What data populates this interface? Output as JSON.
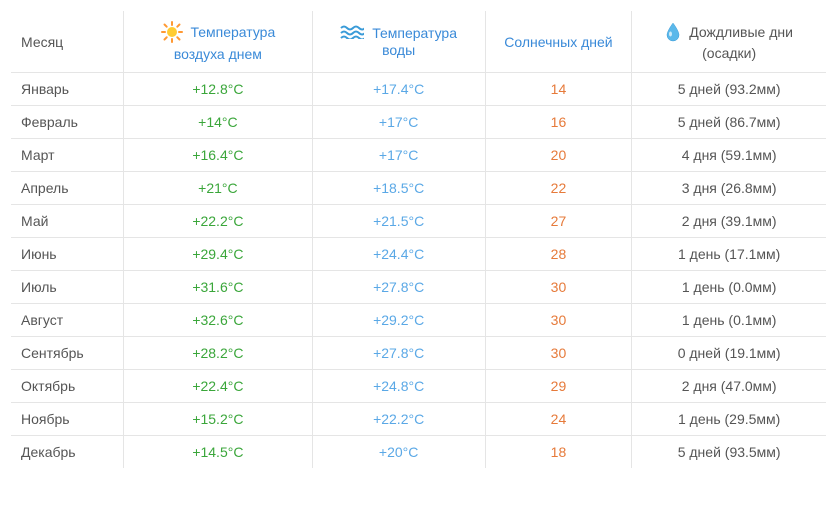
{
  "colors": {
    "air": "#3aa63a",
    "water": "#5aa8e6",
    "sunny": "#e67a3a",
    "rain": "#555555",
    "header_link": "#3a8ad8",
    "header_text": "#555555",
    "border": "#e5e5e5",
    "background": "#ffffff"
  },
  "headers": {
    "month": "Месяц",
    "air": "Температура воздуха днем",
    "water": "Температура воды",
    "sunny": "Солнечных дней",
    "rain": "Дождливые дни (осадки)"
  },
  "icons": {
    "sun": "sun-icon",
    "waves": "waves-icon",
    "drop": "drop-icon"
  },
  "rows": [
    {
      "month": "Январь",
      "air": "+12.8°C",
      "water": "+17.4°C",
      "sunny": "14",
      "rain": "5 дней (93.2мм)"
    },
    {
      "month": "Февраль",
      "air": "+14°C",
      "water": "+17°C",
      "sunny": "16",
      "rain": "5 дней (86.7мм)"
    },
    {
      "month": "Март",
      "air": "+16.4°C",
      "water": "+17°C",
      "sunny": "20",
      "rain": "4 дня (59.1мм)"
    },
    {
      "month": "Апрель",
      "air": "+21°C",
      "water": "+18.5°C",
      "sunny": "22",
      "rain": "3 дня (26.8мм)"
    },
    {
      "month": "Май",
      "air": "+22.2°C",
      "water": "+21.5°C",
      "sunny": "27",
      "rain": "2 дня (39.1мм)"
    },
    {
      "month": "Июнь",
      "air": "+29.4°C",
      "water": "+24.4°C",
      "sunny": "28",
      "rain": "1 день (17.1мм)"
    },
    {
      "month": "Июль",
      "air": "+31.6°C",
      "water": "+27.8°C",
      "sunny": "30",
      "rain": "1 день (0.0мм)"
    },
    {
      "month": "Август",
      "air": "+32.6°C",
      "water": "+29.2°C",
      "sunny": "30",
      "rain": "1 день (0.1мм)"
    },
    {
      "month": "Сентябрь",
      "air": "+28.2°C",
      "water": "+27.8°C",
      "sunny": "30",
      "rain": "0 дней (19.1мм)"
    },
    {
      "month": "Октябрь",
      "air": "+22.4°C",
      "water": "+24.8°C",
      "sunny": "29",
      "rain": "2 дня (47.0мм)"
    },
    {
      "month": "Ноябрь",
      "air": "+15.2°C",
      "water": "+22.2°C",
      "sunny": "24",
      "rain": "1 день (29.5мм)"
    },
    {
      "month": "Декабрь",
      "air": "+14.5°C",
      "water": "+20°C",
      "sunny": "18",
      "rain": "5 дней (93.5мм)"
    }
  ]
}
